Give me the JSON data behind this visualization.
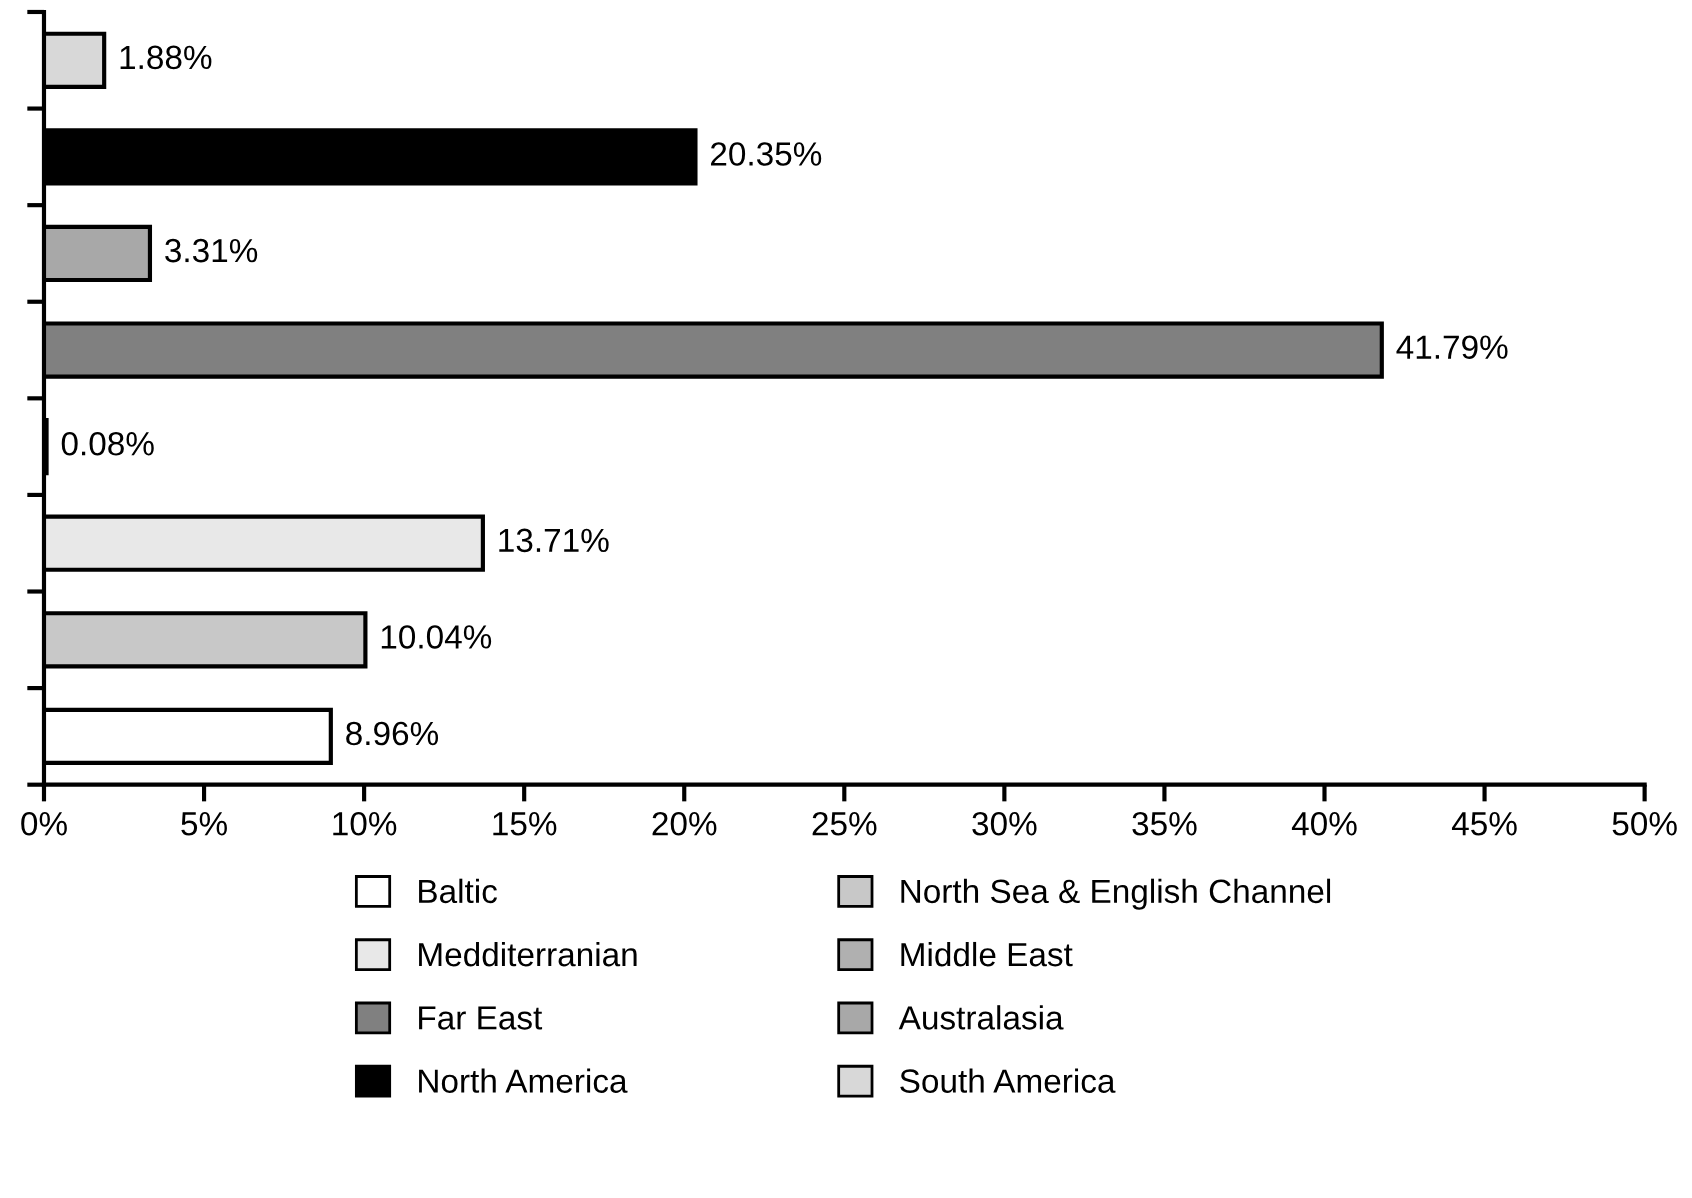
{
  "chart_data": {
    "type": "bar",
    "orientation": "horizontal",
    "categories": [
      null,
      null,
      null,
      null,
      null,
      null,
      null,
      null
    ],
    "series": [
      {
        "name": "Baltic",
        "color": "#ffffff",
        "values": [
          null,
          null,
          null,
          null,
          null,
          null,
          null,
          8.96
        ]
      },
      {
        "name": "North Sea & English Channel",
        "color": "#c8c8c8",
        "values": [
          null,
          null,
          null,
          null,
          null,
          null,
          10.04,
          null
        ]
      },
      {
        "name": "Medditerranian",
        "color": "#e8e8e8",
        "values": [
          null,
          null,
          null,
          null,
          null,
          13.71,
          null,
          null
        ]
      },
      {
        "name": "Middle East",
        "color": "#b0b0b0",
        "values": [
          null,
          null,
          null,
          null,
          0.08,
          null,
          null,
          null
        ]
      },
      {
        "name": "Far East",
        "color": "#808080",
        "values": [
          null,
          null,
          null,
          41.79,
          null,
          null,
          null,
          null
        ]
      },
      {
        "name": "Australasia",
        "color": "#a8a8a8",
        "values": [
          null,
          null,
          3.31,
          null,
          null,
          null,
          null,
          null
        ]
      },
      {
        "name": "North America",
        "color": "#000000",
        "values": [
          null,
          20.35,
          null,
          null,
          null,
          null,
          null,
          null
        ]
      },
      {
        "name": "South America",
        "color": "#d8d8d8",
        "values": [
          1.88,
          null,
          null,
          null,
          null,
          null,
          null,
          null
        ]
      }
    ],
    "value_labels": [
      "1.88%",
      "20.35%",
      "3.31%",
      "41.79%",
      "0.08%",
      "13.71%",
      "10.04%",
      "8.96%"
    ],
    "xlim": [
      0,
      50
    ],
    "xticks": [
      {
        "value": 0,
        "label": "0%"
      },
      {
        "value": 5,
        "label": "5%"
      },
      {
        "value": 10,
        "label": "10%"
      },
      {
        "value": 15,
        "label": "15%"
      },
      {
        "value": 20,
        "label": "20%"
      },
      {
        "value": 25,
        "label": "25%"
      },
      {
        "value": 30,
        "label": "30%"
      },
      {
        "value": 35,
        "label": "35%"
      },
      {
        "value": 40,
        "label": "40%"
      },
      {
        "value": 45,
        "label": "45%"
      },
      {
        "value": 50,
        "label": "50%"
      }
    ],
    "tick_labels": "x",
    "grid": false,
    "legend": "bottom"
  }
}
